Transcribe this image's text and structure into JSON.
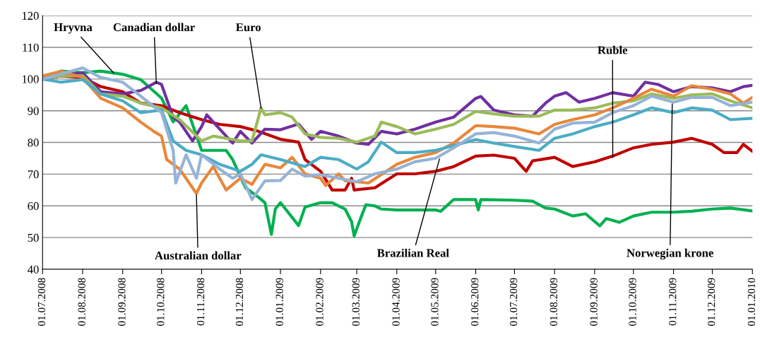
{
  "chart_data": {
    "type": "line",
    "xlim": [
      "2008-07-01",
      "2010-01-01"
    ],
    "xticks": [
      {
        "value": "2008-07-01",
        "label": "01.07.2008"
      },
      {
        "value": "2008-08-01",
        "label": "01.08.2008"
      },
      {
        "value": "2008-09-01",
        "label": "01.09.2008"
      },
      {
        "value": "2008-10-01",
        "label": "01.10.2008"
      },
      {
        "value": "2008-11-01",
        "label": "01.11.2008"
      },
      {
        "value": "2008-12-01",
        "label": "01.12.2008"
      },
      {
        "value": "2009-01-01",
        "label": "01.01.2009"
      },
      {
        "value": "2009-02-01",
        "label": "01.02.2009"
      },
      {
        "value": "2009-03-01",
        "label": "01.03.2009"
      },
      {
        "value": "2009-04-01",
        "label": "01.04.2009"
      },
      {
        "value": "2009-05-01",
        "label": "01.05.2009"
      },
      {
        "value": "2009-06-01",
        "label": "01.06.2009"
      },
      {
        "value": "2009-07-01",
        "label": "01.07.2009"
      },
      {
        "value": "2009-08-01",
        "label": "01.08.2009"
      },
      {
        "value": "2009-09-01",
        "label": "01.09.2009"
      },
      {
        "value": "2009-10-01",
        "label": "01.10.2009"
      },
      {
        "value": "2009-11-01",
        "label": "01.11.2009"
      },
      {
        "value": "2009-12-01",
        "label": "01.12.2009"
      },
      {
        "value": "2010-01-01",
        "label": "01.01.2010"
      }
    ],
    "ylim": [
      40,
      120
    ],
    "yticks": [
      40,
      50,
      60,
      70,
      80,
      90,
      100,
      110,
      120
    ],
    "grid": "y",
    "line_style": "solid",
    "marker": "none",
    "series": [
      {
        "color": "#00b050",
        "x": [
          "2008-07-01",
          "2008-07-15",
          "2008-08-01",
          "2008-08-15",
          "2008-09-01",
          "2008-09-15",
          "2008-10-01",
          "2008-10-10",
          "2008-10-20",
          "2008-11-01",
          "2008-11-10",
          "2008-11-20",
          "2008-11-25",
          "2008-12-05",
          "2008-12-15",
          "2008-12-20",
          "2008-12-25",
          "2008-12-28",
          "2009-01-01",
          "2009-01-15",
          "2009-01-20",
          "2009-02-01",
          "2009-02-10",
          "2009-02-20",
          "2009-02-25",
          "2009-02-27",
          "2009-03-03",
          "2009-03-08",
          "2009-03-15",
          "2009-03-20",
          "2009-04-01",
          "2009-05-01",
          "2009-05-05",
          "2009-05-15",
          "2009-06-01",
          "2009-06-03",
          "2009-06-05",
          "2009-07-01",
          "2009-07-15",
          "2009-07-25",
          "2009-08-01",
          "2009-08-15",
          "2009-08-25",
          "2009-09-05",
          "2009-09-10",
          "2009-09-20",
          "2009-10-01",
          "2009-10-15",
          "2009-11-01",
          "2009-11-15",
          "2009-12-01",
          "2009-12-15",
          "2010-01-01"
        ],
        "values": [
          100,
          102.5,
          102,
          102.5,
          101.5,
          99.8,
          94,
          86.5,
          91.6,
          77.5,
          77.5,
          77.5,
          74.6,
          65.7,
          62.7,
          61,
          51,
          59,
          61,
          53.8,
          59.6,
          61,
          61,
          59,
          55,
          50.5,
          55,
          60.3,
          60,
          59,
          58.7,
          58.7,
          58.3,
          62,
          62,
          58.7,
          62,
          61.8,
          61.5,
          59.3,
          59,
          56.8,
          57.5,
          53.7,
          56,
          54.8,
          56.8,
          58,
          58,
          58.3,
          59,
          59.3,
          58.4
        ]
      },
      {
        "color": "#c00000",
        "x": [
          "2008-07-01",
          "2008-07-15",
          "2008-08-01",
          "2008-08-15",
          "2008-09-01",
          "2008-09-15",
          "2008-10-01",
          "2008-10-15",
          "2008-11-01",
          "2008-11-15",
          "2008-12-01",
          "2008-12-15",
          "2009-01-01",
          "2009-01-15",
          "2009-01-20",
          "2009-02-01",
          "2009-02-10",
          "2009-02-20",
          "2009-02-25",
          "2009-02-27",
          "2009-03-15",
          "2009-04-01",
          "2009-04-15",
          "2009-05-01",
          "2009-05-15",
          "2009-06-01",
          "2009-06-15",
          "2009-07-01",
          "2009-07-10",
          "2009-07-15",
          "2009-08-01",
          "2009-08-15",
          "2009-09-01",
          "2009-09-15",
          "2009-10-01",
          "2009-10-15",
          "2009-11-01",
          "2009-11-15",
          "2009-12-01",
          "2009-12-10",
          "2009-12-20",
          "2009-12-25",
          "2010-01-01"
        ],
        "values": [
          100,
          101,
          100.5,
          97.6,
          96,
          92.4,
          91.6,
          89.4,
          87.2,
          85.7,
          85,
          83.5,
          81,
          80.1,
          74.6,
          70.9,
          65,
          65,
          68.7,
          65,
          65.7,
          70.1,
          70.1,
          70.9,
          72.4,
          75.7,
          76,
          75,
          70.9,
          74.2,
          75.3,
          72.4,
          73.9,
          75.7,
          78.3,
          79.4,
          80.1,
          81.3,
          79.4,
          76.8,
          76.8,
          79.4,
          77.2
        ]
      },
      {
        "color": "#7030a0",
        "x": [
          "2008-07-01",
          "2008-07-15",
          "2008-08-01",
          "2008-08-15",
          "2008-09-01",
          "2008-09-15",
          "2008-09-27",
          "2008-10-01",
          "2008-10-10",
          "2008-10-15",
          "2008-10-25",
          "2008-11-01",
          "2008-11-05",
          "2008-11-15",
          "2008-11-25",
          "2008-12-01",
          "2008-12-10",
          "2008-12-20",
          "2009-01-01",
          "2009-01-15",
          "2009-01-25",
          "2009-02-01",
          "2009-02-15",
          "2009-03-01",
          "2009-03-10",
          "2009-03-20",
          "2009-04-01",
          "2009-04-15",
          "2009-05-01",
          "2009-05-15",
          "2009-06-01",
          "2009-06-05",
          "2009-06-15",
          "2009-07-01",
          "2009-07-15",
          "2009-07-25",
          "2009-08-01",
          "2009-08-10",
          "2009-08-20",
          "2009-09-01",
          "2009-09-15",
          "2009-10-01",
          "2009-10-10",
          "2009-10-20",
          "2009-11-01",
          "2009-11-15",
          "2009-12-01",
          "2009-12-15",
          "2009-12-25",
          "2010-01-01"
        ],
        "values": [
          100,
          101,
          102,
          96,
          95.3,
          96.4,
          99,
          98.3,
          88,
          86.4,
          80.5,
          85,
          88.7,
          84.2,
          79.8,
          83.5,
          79.8,
          84.2,
          84,
          85.8,
          81,
          83.5,
          82,
          79.8,
          79.4,
          83.5,
          82.7,
          84.2,
          86.4,
          88,
          93.9,
          94.5,
          90.2,
          88.7,
          88.3,
          92.4,
          94.6,
          95.7,
          92.7,
          93.9,
          95.7,
          94.6,
          99,
          98.3,
          96,
          97.6,
          97.2,
          96,
          97.6,
          98
        ]
      },
      {
        "color": "#9bbb59",
        "x": [
          "2008-07-01",
          "2008-07-15",
          "2008-08-01",
          "2008-08-15",
          "2008-09-01",
          "2008-09-15",
          "2008-10-01",
          "2008-10-15",
          "2008-11-01",
          "2008-11-10",
          "2008-11-20",
          "2008-12-01",
          "2008-12-10",
          "2008-12-17",
          "2008-12-20",
          "2009-01-01",
          "2009-01-10",
          "2009-01-20",
          "2009-02-01",
          "2009-02-15",
          "2009-03-01",
          "2009-03-15",
          "2009-03-20",
          "2009-04-01",
          "2009-04-15",
          "2009-05-01",
          "2009-05-15",
          "2009-06-01",
          "2009-06-15",
          "2009-07-01",
          "2009-07-20",
          "2009-08-01",
          "2009-08-15",
          "2009-09-01",
          "2009-09-15",
          "2009-10-01",
          "2009-10-15",
          "2009-11-01",
          "2009-11-15",
          "2009-12-01",
          "2009-12-15",
          "2010-01-01"
        ],
        "values": [
          100,
          101,
          101,
          95.3,
          94.6,
          92.4,
          90.9,
          87.2,
          80.5,
          82,
          81.3,
          80.5,
          80.5,
          90.9,
          88.7,
          89.4,
          88,
          82.7,
          81.6,
          81.3,
          80.1,
          82,
          86.4,
          85,
          82.7,
          84.2,
          85.7,
          89.8,
          89,
          88.3,
          88.3,
          90.2,
          90.2,
          90.9,
          92.4,
          93.1,
          95.3,
          93.9,
          95,
          95.3,
          93.1,
          90.9
        ]
      },
      {
        "color": "#e8873a",
        "x": [
          "2008-07-01",
          "2008-07-15",
          "2008-08-01",
          "2008-08-15",
          "2008-09-01",
          "2008-09-15",
          "2008-09-25",
          "2008-10-01",
          "2008-10-05",
          "2008-10-15",
          "2008-10-28",
          "2008-11-01",
          "2008-11-10",
          "2008-11-20",
          "2008-12-01",
          "2008-12-10",
          "2008-12-20",
          "2009-01-01",
          "2009-01-10",
          "2009-01-20",
          "2009-02-01",
          "2009-02-05",
          "2009-02-15",
          "2009-02-20",
          "2009-03-01",
          "2009-03-10",
          "2009-04-01",
          "2009-04-15",
          "2009-05-01",
          "2009-05-15",
          "2009-06-01",
          "2009-06-15",
          "2009-07-01",
          "2009-07-20",
          "2009-08-01",
          "2009-08-15",
          "2009-09-01",
          "2009-09-15",
          "2009-10-01",
          "2009-10-15",
          "2009-11-01",
          "2009-11-15",
          "2009-12-01",
          "2009-12-15",
          "2009-12-25",
          "2010-01-01"
        ],
        "values": [
          101,
          102.4,
          100.5,
          93.9,
          90.9,
          86.4,
          83.5,
          82,
          74.6,
          71.6,
          63.9,
          67.2,
          72.4,
          65,
          68.7,
          66.8,
          73.1,
          72,
          75.3,
          70.1,
          68.7,
          66.4,
          70.1,
          67.9,
          67.6,
          67.2,
          73.1,
          75.3,
          76.8,
          79.8,
          85.3,
          85,
          84.5,
          82.7,
          85.7,
          87.2,
          88.7,
          90.9,
          93.9,
          96.8,
          94.6,
          97.9,
          96.8,
          95.3,
          92.4,
          94.2
        ]
      },
      {
        "color": "#4bacc6",
        "x": [
          "2008-07-01",
          "2008-07-15",
          "2008-08-01",
          "2008-08-15",
          "2008-09-01",
          "2008-09-15",
          "2008-10-01",
          "2008-10-10",
          "2008-10-20",
          "2008-11-01",
          "2008-11-15",
          "2008-12-01",
          "2008-12-10",
          "2008-12-17",
          "2009-01-01",
          "2009-01-20",
          "2009-02-01",
          "2009-02-15",
          "2009-03-01",
          "2009-03-10",
          "2009-03-20",
          "2009-04-01",
          "2009-04-15",
          "2009-05-01",
          "2009-05-15",
          "2009-06-01",
          "2009-06-15",
          "2009-07-01",
          "2009-07-20",
          "2009-08-01",
          "2009-08-15",
          "2009-09-01",
          "2009-09-15",
          "2009-10-01",
          "2009-10-15",
          "2009-11-01",
          "2009-11-15",
          "2009-12-01",
          "2009-12-15",
          "2010-01-01"
        ],
        "values": [
          100,
          99,
          99.8,
          95.3,
          93.1,
          89.4,
          90.2,
          80.5,
          77.5,
          76.1,
          73.1,
          70.9,
          73.1,
          76.1,
          74.6,
          72.4,
          75.3,
          74.6,
          71.6,
          73.9,
          80.1,
          76.8,
          76.8,
          77.5,
          79,
          80.9,
          79.8,
          78.7,
          77.5,
          81.3,
          82.7,
          85,
          86.4,
          88.7,
          90.9,
          89.4,
          90.9,
          90.2,
          87.2,
          87.6
        ]
      },
      {
        "color": "#95b3d7",
        "x": [
          "2008-07-01",
          "2008-07-15",
          "2008-08-01",
          "2008-08-15",
          "2008-09-01",
          "2008-09-15",
          "2008-10-01",
          "2008-10-10",
          "2008-10-12",
          "2008-10-20",
          "2008-10-28",
          "2008-11-01",
          "2008-11-15",
          "2008-11-25",
          "2008-12-01",
          "2008-12-10",
          "2008-12-20",
          "2009-01-01",
          "2009-01-10",
          "2009-01-20",
          "2009-02-01",
          "2009-02-15",
          "2009-03-01",
          "2009-03-15",
          "2009-04-01",
          "2009-04-15",
          "2009-05-01",
          "2009-05-15",
          "2009-06-01",
          "2009-06-15",
          "2009-07-01",
          "2009-07-20",
          "2009-08-01",
          "2009-08-15",
          "2009-09-01",
          "2009-09-15",
          "2009-10-01",
          "2009-10-15",
          "2009-11-01",
          "2009-11-15",
          "2009-12-01",
          "2009-12-15",
          "2010-01-01"
        ],
        "values": [
          100,
          101.5,
          103.5,
          100.5,
          99,
          94.6,
          89.4,
          77.5,
          67.2,
          76.1,
          68.7,
          76.1,
          71.6,
          68.7,
          70.1,
          62,
          67.9,
          68,
          71.6,
          69.4,
          69.8,
          68.7,
          67.6,
          70.1,
          71.6,
          73.9,
          75,
          78.3,
          82.7,
          83.1,
          82,
          79.8,
          84.2,
          86.1,
          86.4,
          89.4,
          91.6,
          94.6,
          92.7,
          94.2,
          94.2,
          91.6,
          92.7
        ]
      }
    ],
    "annotations": [
      {
        "text": "Hryvna",
        "x": "2008-08-25",
        "y": 101.9
      },
      {
        "text": "Canadian dollar",
        "x": "2008-09-27",
        "y": 98.6
      },
      {
        "text": "Euro",
        "x": "2008-12-17",
        "y": 90.8
      },
      {
        "text": "Ruble",
        "x": "2009-09-15",
        "y": 75.2
      },
      {
        "text": "Australian dollar",
        "x": "2008-10-28",
        "y": 63.5
      },
      {
        "text": "Brazilian Real",
        "x": "2009-05-04",
        "y": 74.8
      },
      {
        "text": "Norwegian krone",
        "x": "2009-10-31",
        "y": 92.2
      }
    ]
  }
}
